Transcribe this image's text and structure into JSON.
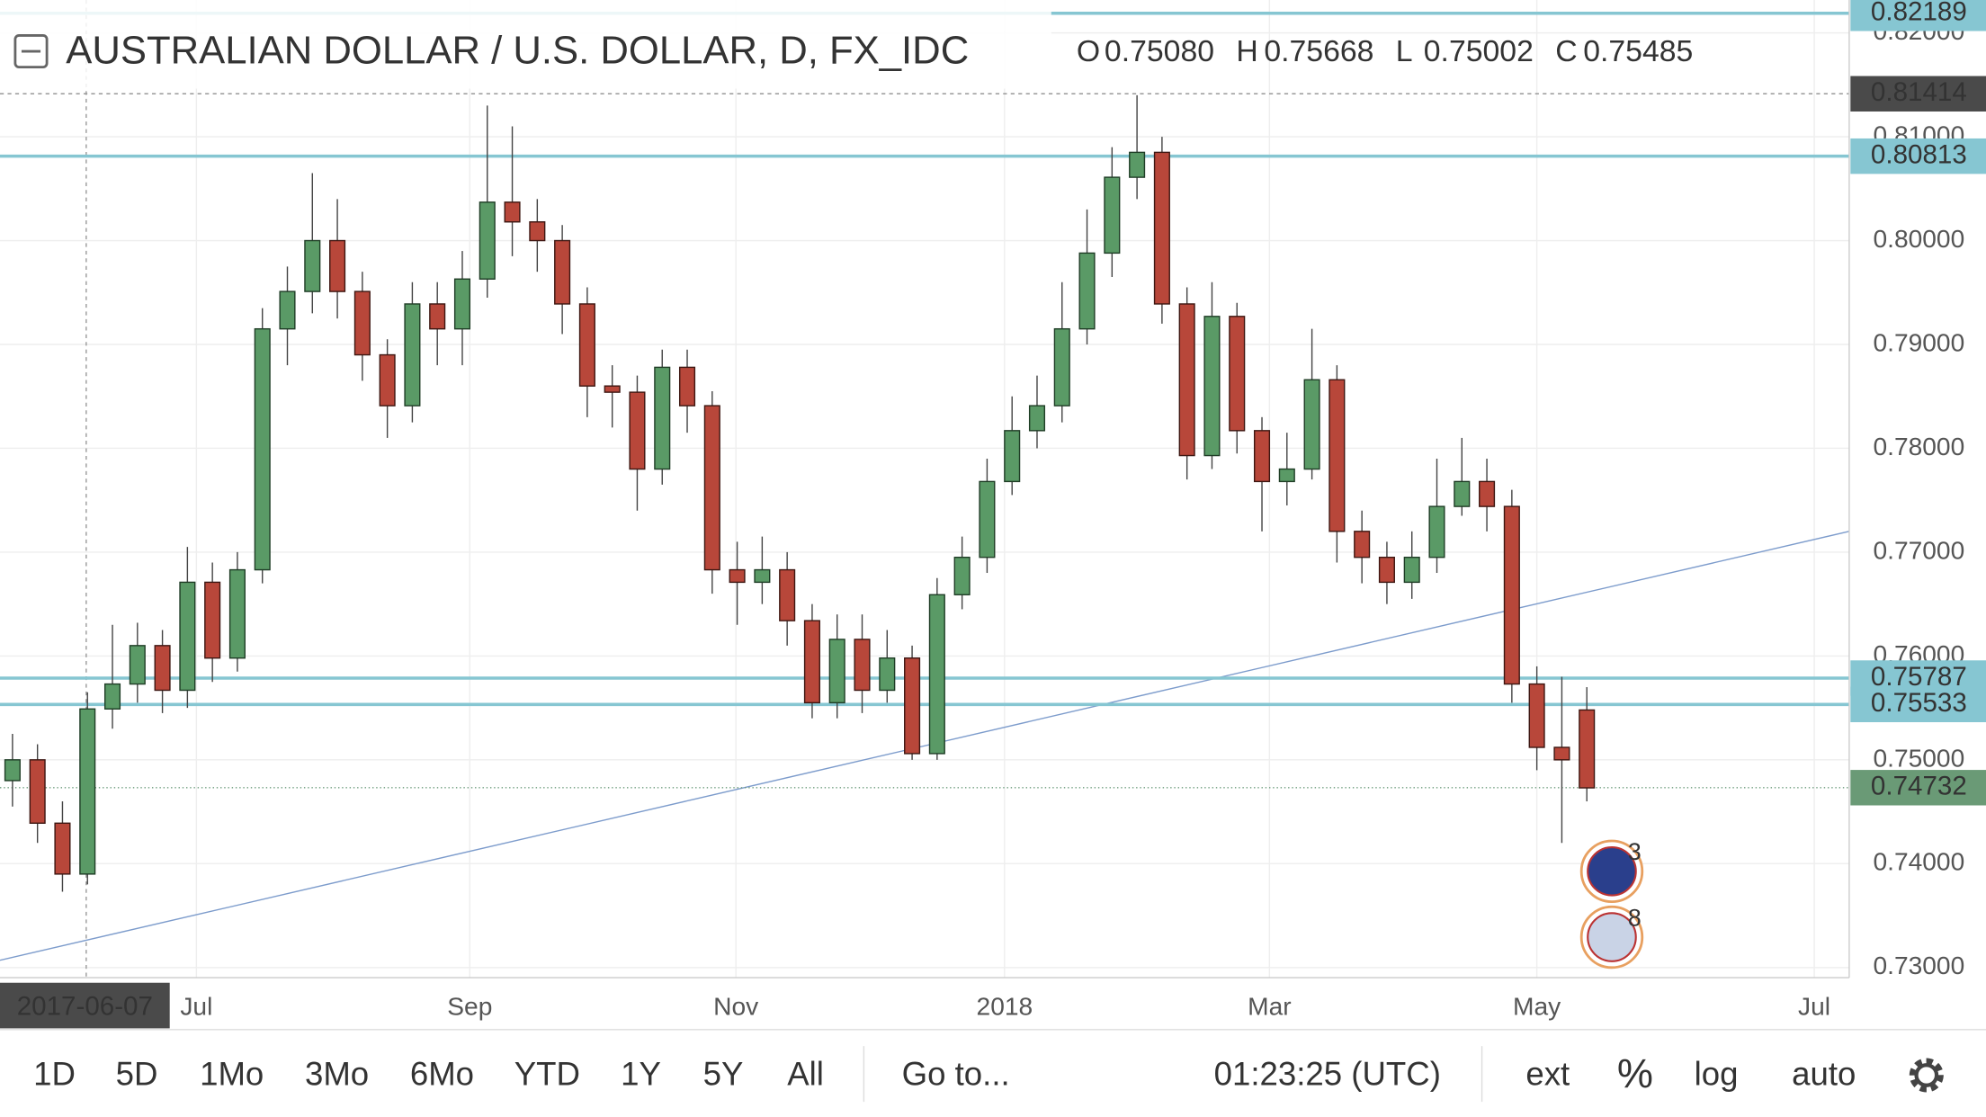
{
  "chart_data": {
    "type": "candlestick",
    "title": "AUSTRALIAN DOLLAR / U.S. DOLLAR, D, FX_IDC",
    "ohlc_header": [
      {
        "name": "O",
        "text": "0.75080"
      },
      {
        "name": "H",
        "text": "0.75668"
      },
      {
        "name": "L",
        "text": "0.75002"
      },
      {
        "name": "C",
        "text": "0.75485"
      }
    ],
    "open": [
      0.748,
      0.75,
      0.7439,
      0.739,
      0.7549,
      0.7573,
      0.761,
      0.7567,
      0.7671,
      0.7598,
      0.7683,
      0.7915,
      0.7951,
      0.8,
      0.7951,
      0.789,
      0.7841,
      0.7939,
      0.7915,
      0.7963,
      0.8037,
      0.8018,
      0.8,
      0.7939,
      0.786,
      0.7854,
      0.778,
      0.7878,
      0.7841,
      0.7683,
      0.7671,
      0.7683,
      0.7634,
      0.7555,
      0.7616,
      0.7567,
      0.7598,
      0.7506,
      0.7659,
      0.7695,
      0.7768,
      0.7817,
      0.7841,
      0.7915,
      0.7988,
      0.8061,
      0.8085,
      0.7939,
      0.7793,
      0.7927,
      0.7817,
      0.7768,
      0.778,
      0.7866,
      0.772,
      0.7695,
      0.7671,
      0.7695,
      0.7744,
      0.7768,
      0.7744,
      0.7573,
      0.7512,
      0.7548
    ],
    "high": [
      0.7525,
      0.7515,
      0.746,
      0.7565,
      0.763,
      0.7632,
      0.7625,
      0.7705,
      0.769,
      0.77,
      0.7935,
      0.7975,
      0.8065,
      0.804,
      0.797,
      0.7905,
      0.796,
      0.796,
      0.799,
      0.813,
      0.811,
      0.804,
      0.8015,
      0.7955,
      0.788,
      0.787,
      0.7895,
      0.7895,
      0.7855,
      0.771,
      0.7715,
      0.77,
      0.765,
      0.764,
      0.764,
      0.7625,
      0.761,
      0.7675,
      0.7715,
      0.779,
      0.785,
      0.787,
      0.796,
      0.803,
      0.809,
      0.814,
      0.81,
      0.7955,
      0.796,
      0.794,
      0.783,
      0.7815,
      0.7915,
      0.788,
      0.774,
      0.771,
      0.772,
      0.779,
      0.781,
      0.779,
      0.776,
      0.759,
      0.758,
      0.757
    ],
    "low": [
      0.7455,
      0.742,
      0.7373,
      0.738,
      0.753,
      0.7555,
      0.7545,
      0.755,
      0.7575,
      0.7585,
      0.767,
      0.788,
      0.793,
      0.7925,
      0.7865,
      0.781,
      0.7825,
      0.788,
      0.788,
      0.7945,
      0.7985,
      0.797,
      0.791,
      0.783,
      0.782,
      0.774,
      0.7765,
      0.7815,
      0.766,
      0.763,
      0.765,
      0.761,
      0.754,
      0.754,
      0.7545,
      0.7555,
      0.75,
      0.75,
      0.7645,
      0.768,
      0.7755,
      0.78,
      0.7825,
      0.79,
      0.7965,
      0.804,
      0.792,
      0.777,
      0.778,
      0.7795,
      0.772,
      0.7745,
      0.777,
      0.769,
      0.767,
      0.765,
      0.7655,
      0.768,
      0.7735,
      0.772,
      0.7555,
      0.749,
      0.742,
      0.746
    ],
    "close": [
      0.75,
      0.7439,
      0.739,
      0.7549,
      0.7573,
      0.761,
      0.7567,
      0.7671,
      0.7598,
      0.7683,
      0.7915,
      0.7951,
      0.8,
      0.7951,
      0.789,
      0.7841,
      0.7939,
      0.7915,
      0.7963,
      0.8037,
      0.8018,
      0.8,
      0.7939,
      0.786,
      0.7854,
      0.778,
      0.7878,
      0.7841,
      0.7683,
      0.7671,
      0.7683,
      0.7634,
      0.7555,
      0.7616,
      0.7567,
      0.7598,
      0.7506,
      0.7659,
      0.7695,
      0.7768,
      0.7817,
      0.7841,
      0.7915,
      0.7988,
      0.8061,
      0.8085,
      0.7939,
      0.7793,
      0.7927,
      0.7817,
      0.7768,
      0.778,
      0.7866,
      0.772,
      0.7695,
      0.7671,
      0.7695,
      0.7744,
      0.7768,
      0.7744,
      0.7573,
      0.7512,
      0.75,
      0.7473
    ],
    "up_color": "#5a9a66",
    "down_color": "#b8473a",
    "xlim": [
      -0.5,
      73.5
    ],
    "xticks": [
      {
        "value": 7.36,
        "label": "Jul"
      },
      {
        "value": 18.3,
        "label": "Sep"
      },
      {
        "value": 28.95,
        "label": "Nov"
      },
      {
        "value": 39.7,
        "label": "2018"
      },
      {
        "value": 50.3,
        "label": "Mar"
      },
      {
        "value": 61.0,
        "label": "May"
      },
      {
        "value": 72.1,
        "label": "Jul"
      }
    ],
    "ylim": [
      0.72902,
      0.82317
    ],
    "yticks": [
      {
        "value": 0.73,
        "label": "0.73000"
      },
      {
        "value": 0.74,
        "label": "0.74000"
      },
      {
        "value": 0.75,
        "label": "0.75000"
      },
      {
        "value": 0.76,
        "label": "0.76000"
      },
      {
        "value": 0.77,
        "label": "0.77000"
      },
      {
        "value": 0.78,
        "label": "0.78000"
      },
      {
        "value": 0.79,
        "label": "0.79000"
      },
      {
        "value": 0.8,
        "label": "0.80000"
      },
      {
        "value": 0.81,
        "label": "0.81000"
      },
      {
        "value": 0.82,
        "label": "0.82000"
      }
    ],
    "grid": true,
    "levels": [
      0.82189,
      0.80813,
      0.75787,
      0.75533
    ],
    "level_color": "#86c6d2",
    "last_price": 0.74732,
    "trendline": {
      "x": [
        -0.5,
        73.5
      ],
      "y": [
        0.7307,
        0.772
      ]
    },
    "crosshair": {
      "x": 2.95,
      "x_label": "2017-06-07",
      "y": 0.81414
    },
    "events": [
      {
        "x": 64.0,
        "count": "3"
      },
      {
        "x": 64.0,
        "count": "8"
      }
    ]
  },
  "toolbar": {
    "ranges": [
      "1D",
      "5D",
      "1Mo",
      "3Mo",
      "6Mo",
      "YTD",
      "1Y",
      "5Y",
      "All"
    ],
    "goto": "Go to...",
    "clock": "01:23:25 (UTC)",
    "options": [
      "ext",
      "%",
      "log",
      "auto"
    ]
  }
}
